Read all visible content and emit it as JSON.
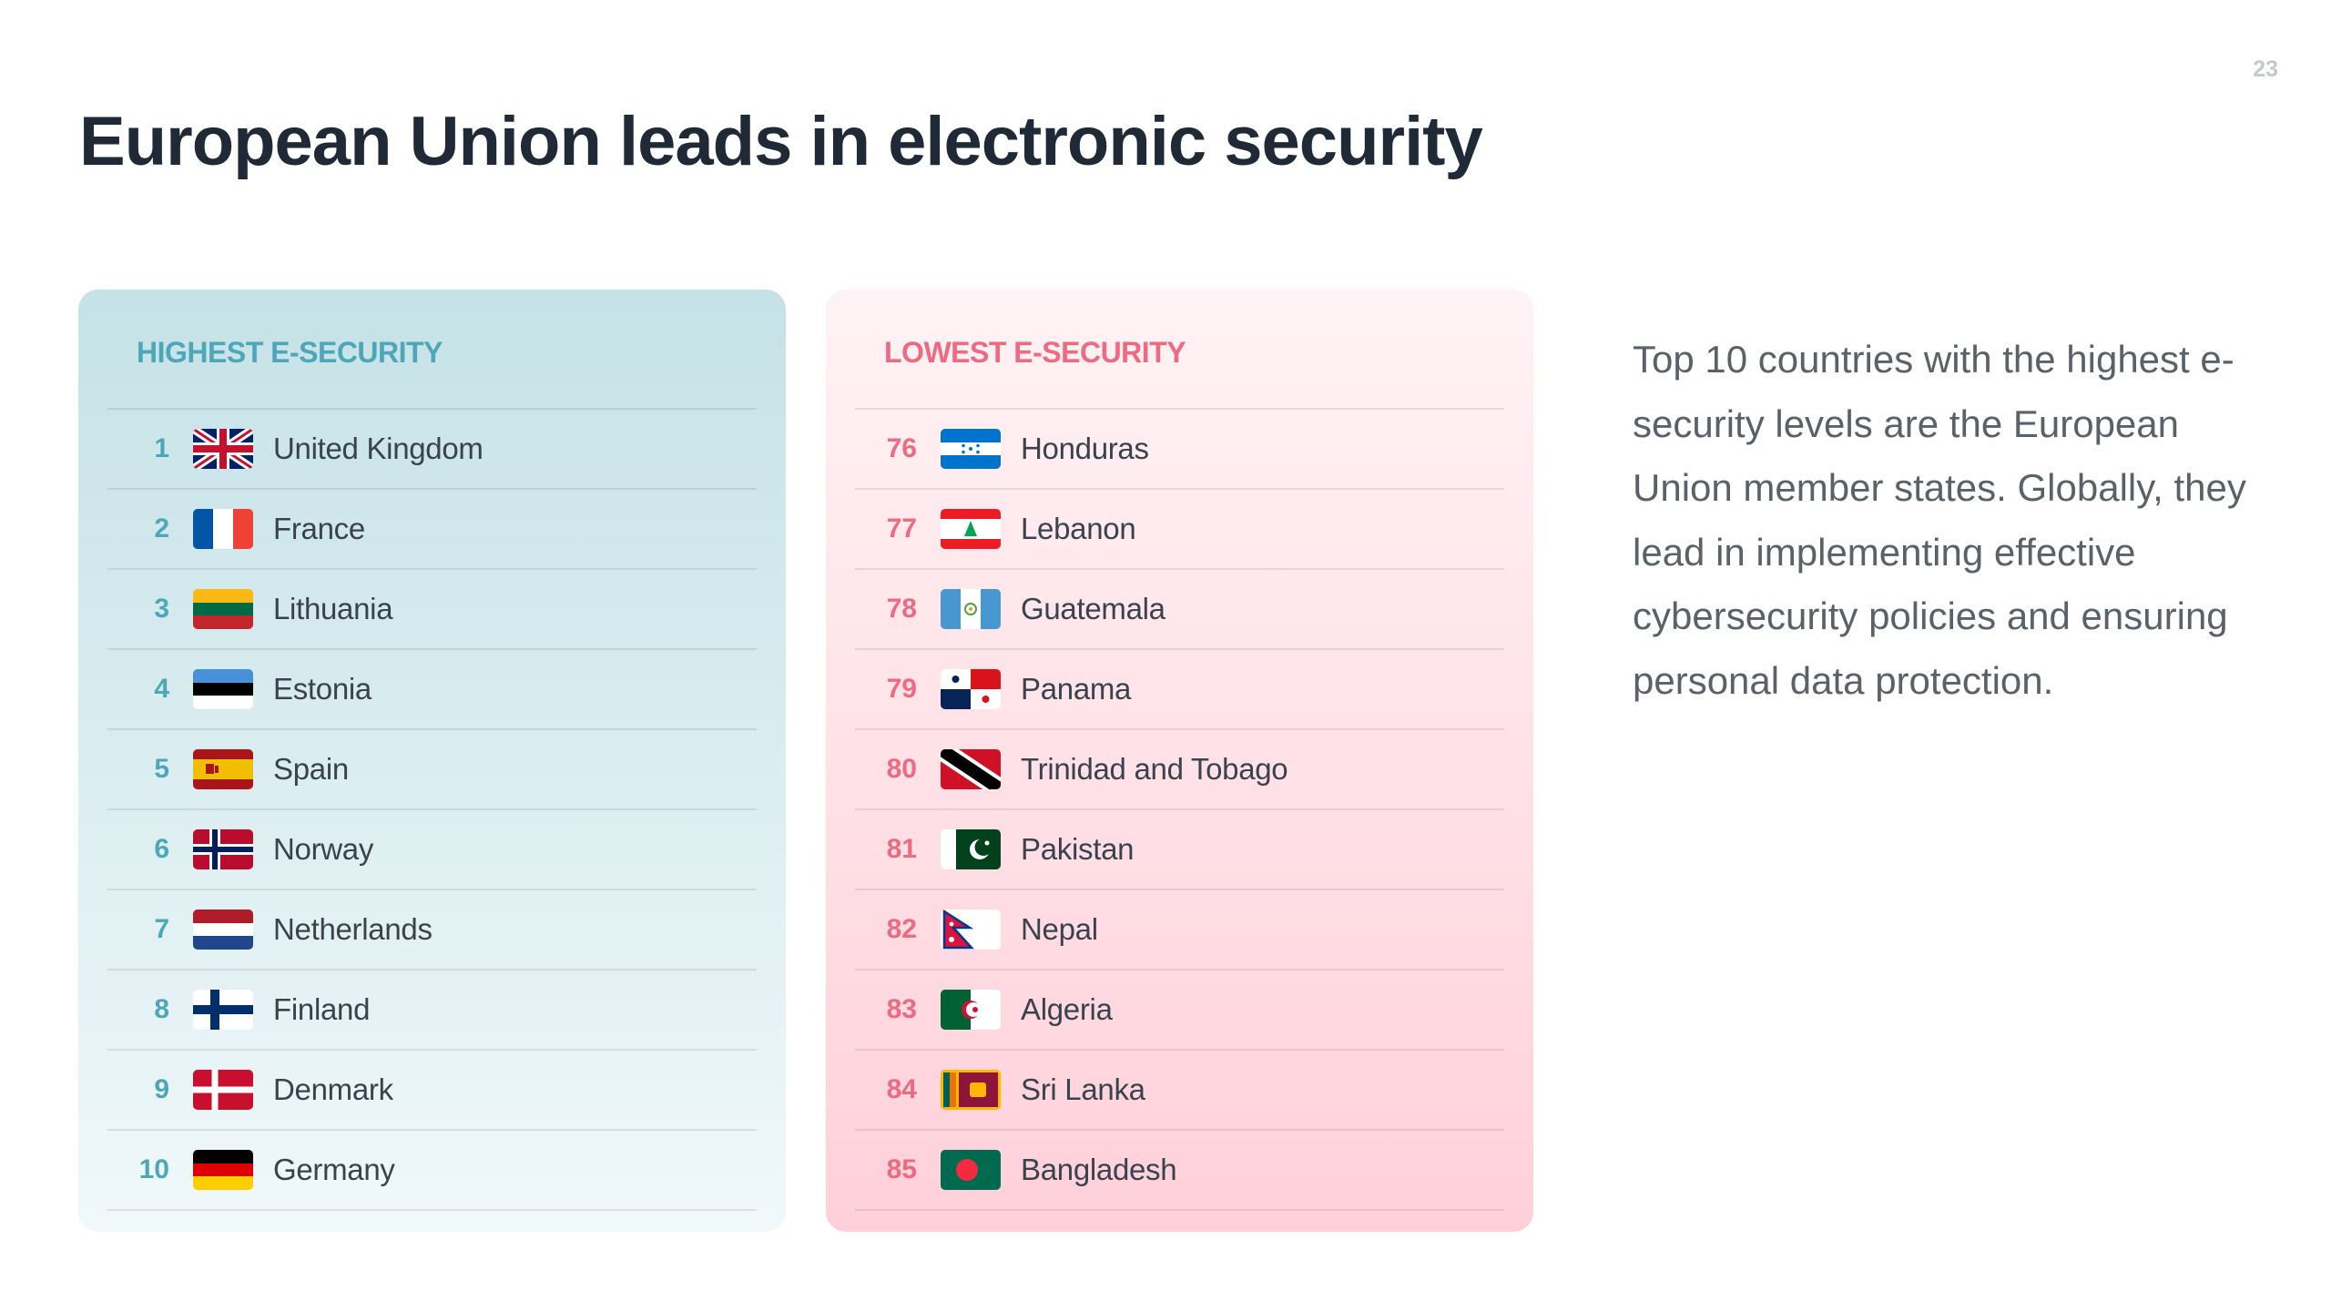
{
  "page_number": "23",
  "title": "European Union leads in electronic security",
  "highest": {
    "heading": "HIGHEST E-SECURITY",
    "rows": [
      {
        "rank": "1",
        "country": "United Kingdom",
        "flag": "gb"
      },
      {
        "rank": "2",
        "country": "France",
        "flag": "fr"
      },
      {
        "rank": "3",
        "country": "Lithuania",
        "flag": "lt"
      },
      {
        "rank": "4",
        "country": "Estonia",
        "flag": "ee"
      },
      {
        "rank": "5",
        "country": "Spain",
        "flag": "es"
      },
      {
        "rank": "6",
        "country": "Norway",
        "flag": "no"
      },
      {
        "rank": "7",
        "country": "Netherlands",
        "flag": "nl"
      },
      {
        "rank": "8",
        "country": "Finland",
        "flag": "fi"
      },
      {
        "rank": "9",
        "country": "Denmark",
        "flag": "dk"
      },
      {
        "rank": "10",
        "country": "Germany",
        "flag": "de"
      }
    ]
  },
  "lowest": {
    "heading": "LOWEST E-SECURITY",
    "rows": [
      {
        "rank": "76",
        "country": "Honduras",
        "flag": "hn"
      },
      {
        "rank": "77",
        "country": "Lebanon",
        "flag": "lb"
      },
      {
        "rank": "78",
        "country": "Guatemala",
        "flag": "gt"
      },
      {
        "rank": "79",
        "country": "Panama",
        "flag": "pa"
      },
      {
        "rank": "80",
        "country": "Trinidad and Tobago",
        "flag": "tt"
      },
      {
        "rank": "81",
        "country": "Pakistan",
        "flag": "pk"
      },
      {
        "rank": "82",
        "country": "Nepal",
        "flag": "np"
      },
      {
        "rank": "83",
        "country": "Algeria",
        "flag": "dz"
      },
      {
        "rank": "84",
        "country": "Sri Lanka",
        "flag": "lk"
      },
      {
        "rank": "85",
        "country": "Bangladesh",
        "flag": "bd"
      }
    ]
  },
  "description": "Top 10 countries with the highest e-security levels are the European Union member states. Globally, they lead in implementing effective cybersecurity policies and ensuring personal data protection.",
  "colors": {
    "highest_accent": "#4ea7b8",
    "lowest_accent": "#ee6a80",
    "title": "#1f2a36"
  }
}
